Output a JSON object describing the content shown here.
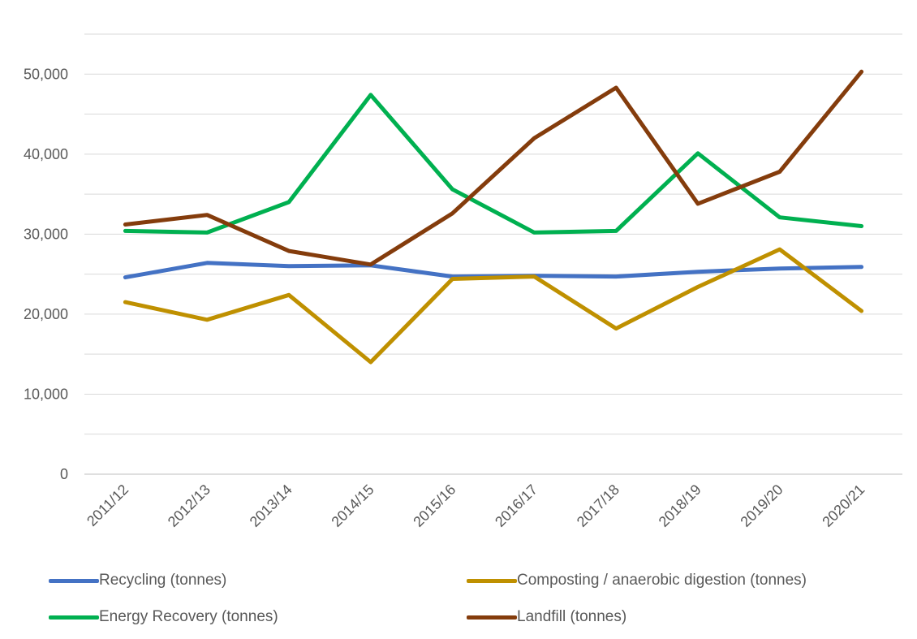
{
  "chart_data": {
    "type": "line",
    "title": "",
    "xlabel": "",
    "ylabel": "",
    "categories": [
      "2011/12",
      "2012/13",
      "2013/14",
      "2014/15",
      "2015/16",
      "2016/17",
      "2017/18",
      "2018/19",
      "2019/20",
      "2020/21"
    ],
    "ylim": [
      0,
      55000
    ],
    "ytick_values": [
      0,
      10000,
      20000,
      30000,
      40000,
      50000
    ],
    "ytick_labels": [
      "0",
      "10,000",
      "20,000",
      "30,000",
      "40,000",
      "50,000"
    ],
    "grid": true,
    "legend_position": "bottom",
    "series": [
      {
        "name": "Recycling (tonnes)",
        "color": "#4472C4",
        "values": [
          24600,
          26400,
          26000,
          26100,
          24700,
          24800,
          24700,
          25300,
          25700,
          25900
        ]
      },
      {
        "name": "Composting / anaerobic digestion (tonnes)",
        "color": "#BF9000",
        "values": [
          21500,
          19300,
          22400,
          14000,
          24400,
          24700,
          18200,
          23400,
          28100,
          20400
        ]
      },
      {
        "name": "Energy Recovery (tonnes)",
        "color": "#00B050",
        "values": [
          30400,
          30200,
          34000,
          47400,
          35600,
          30200,
          30400,
          40100,
          32100,
          31000
        ]
      },
      {
        "name": "Landfill (tonnes)",
        "color": "#843C0C",
        "values": [
          31200,
          32400,
          27900,
          26200,
          32600,
          42000,
          48300,
          33800,
          37800,
          50300
        ]
      }
    ]
  }
}
